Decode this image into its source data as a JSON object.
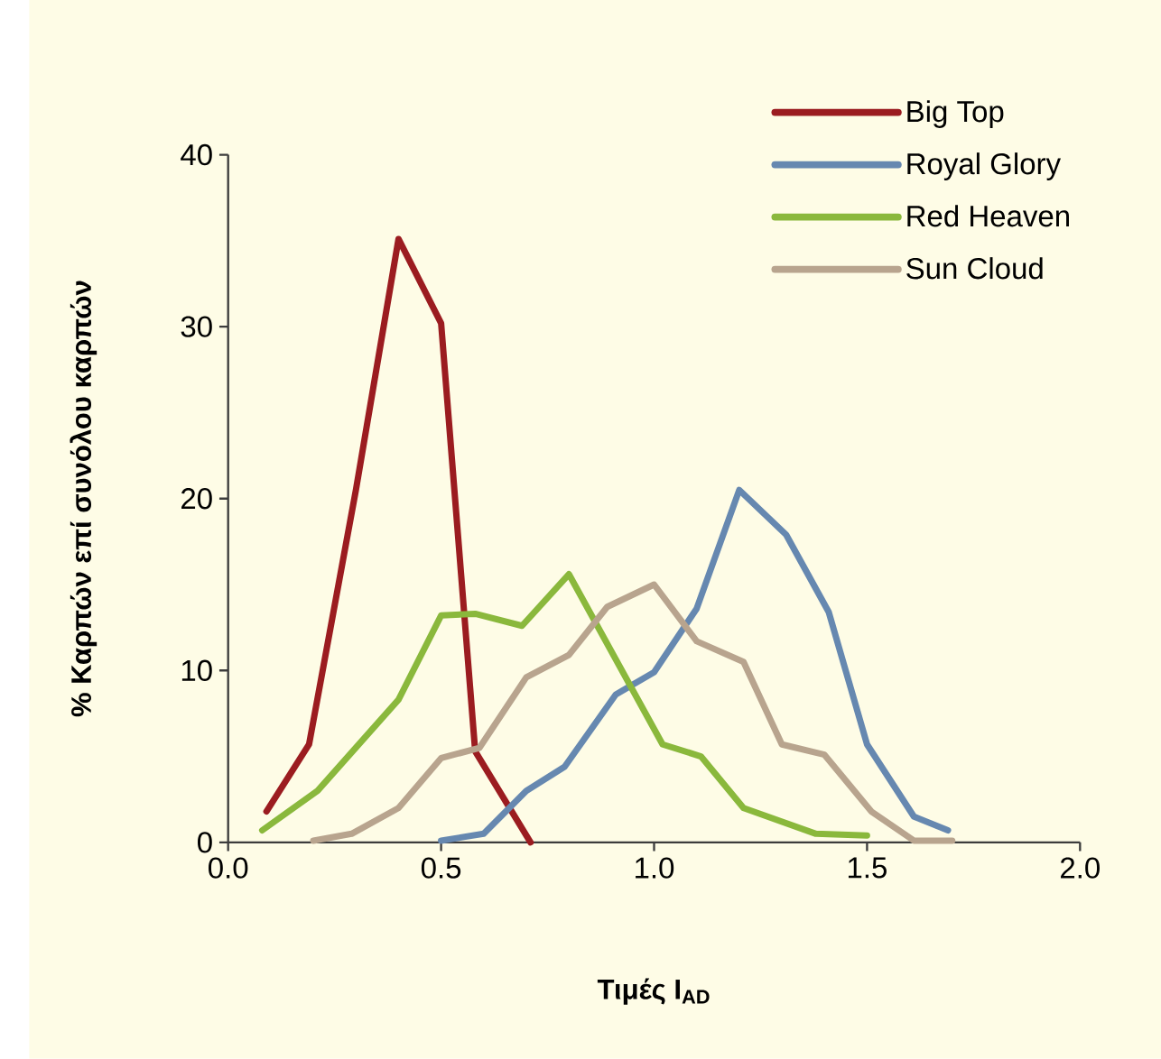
{
  "chart_data": {
    "type": "line",
    "xlabel": "Τιμές I$_{AD}$",
    "ylabel": "% Καρπών επί συνόλου καρπών",
    "xlim": [
      0,
      2
    ],
    "ylim": [
      0,
      40
    ],
    "xticks": [
      {
        "value": 0,
        "label": "0.0"
      },
      {
        "value": 0.5,
        "label": "0.5"
      },
      {
        "value": 1,
        "label": "1.0"
      },
      {
        "value": 1.5,
        "label": "1.5"
      },
      {
        "value": 2,
        "label": "2.0"
      }
    ],
    "yticks": [
      0,
      10,
      20,
      30,
      40
    ],
    "grid": false,
    "legend": "top right",
    "marker": "none",
    "line_style": "solid",
    "series": [
      {
        "name": "Big Top",
        "color": "#9b1c20",
        "x": [
          0.09,
          0.19,
          0.3,
          0.4,
          0.5,
          0.58,
          0.71
        ],
        "values": [
          1.8,
          5.7,
          20.5,
          35.1,
          30.2,
          5.3,
          0
        ]
      },
      {
        "name": "Royal Glory",
        "color": "#6688b0",
        "x": [
          0.5,
          0.6,
          0.7,
          0.79,
          0.91,
          1.0,
          1.1,
          1.2,
          1.31,
          1.41,
          1.5,
          1.61,
          1.69
        ],
        "values": [
          0.1,
          0.5,
          3.0,
          4.4,
          8.6,
          9.9,
          13.6,
          20.5,
          17.9,
          13.4,
          5.7,
          1.5,
          0.7
        ]
      },
      {
        "name": "Red Heaven",
        "color": "#8ab83c",
        "x": [
          0.08,
          0.21,
          0.4,
          0.5,
          0.58,
          0.69,
          0.8,
          1.02,
          1.11,
          1.21,
          1.38,
          1.5
        ],
        "values": [
          0.7,
          3.0,
          8.3,
          13.2,
          13.3,
          12.6,
          15.6,
          5.7,
          5.0,
          2.0,
          0.5,
          0.4
        ]
      },
      {
        "name": "Sun Cloud",
        "color": "#b8a48e",
        "x": [
          0.2,
          0.29,
          0.4,
          0.5,
          0.59,
          0.7,
          0.8,
          0.89,
          1.0,
          1.1,
          1.21,
          1.3,
          1.4,
          1.51,
          1.61,
          1.7
        ],
        "values": [
          0.1,
          0.5,
          2.0,
          4.9,
          5.5,
          9.6,
          10.9,
          13.7,
          15.0,
          11.7,
          10.5,
          5.7,
          5.1,
          1.8,
          0.1,
          0.1
        ]
      }
    ]
  }
}
